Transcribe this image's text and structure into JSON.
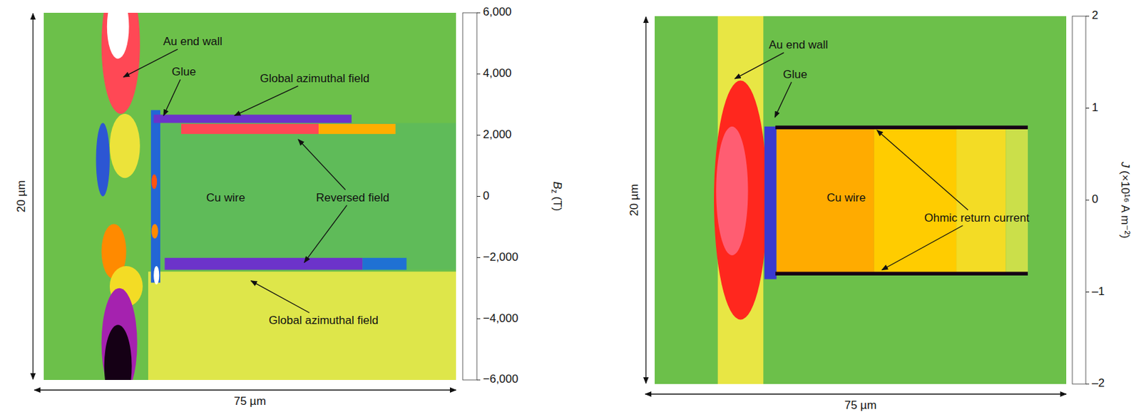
{
  "chart_data": [
    {
      "type": "heatmap",
      "xlabel": "75 µm",
      "ylabel": "20 µm",
      "xlim": [
        0,
        75
      ],
      "ylim": [
        20,
        0
      ],
      "tick_labels": false,
      "colorbar": {
        "label": {
          "symbol": "B",
          "subscript": "z",
          "unit": "(T)"
        },
        "range": [
          -6000,
          6000
        ],
        "ticks": [
          {
            "value": 6000,
            "label": "6,000"
          },
          {
            "value": 4000,
            "label": "4,000"
          },
          {
            "value": 2000,
            "label": "2,000"
          },
          0,
          {
            "value": -2000,
            "label": "−2,000"
          },
          {
            "value": -4000,
            "label": "−4,000"
          },
          {
            "value": -6000,
            "label": "−6,000"
          }
        ]
      },
      "regions": [
        {
          "shape": "rect",
          "x0": 0,
          "x1": 75,
          "y0": 0,
          "y1": 20,
          "value": 0
        },
        {
          "shape": "rect",
          "x0": 19,
          "x1": 75,
          "y0": 14.1,
          "y1": 20,
          "value": -900
        },
        {
          "shape": "ellipse",
          "x0": 10.5,
          "x1": 17.5,
          "y0": -2,
          "y1": 5.5,
          "value": -4500
        },
        {
          "shape": "ellipse",
          "x0": 11.5,
          "x1": 15.5,
          "y0": -1,
          "y1": 2.5,
          "value": -6000
        },
        {
          "shape": "ellipse",
          "x0": 9.5,
          "x1": 12,
          "y0": 6,
          "y1": 10,
          "value": 2500
        },
        {
          "shape": "ellipse",
          "x0": 12,
          "x1": 17.5,
          "y0": 5.5,
          "y1": 9,
          "value": -1200
        },
        {
          "shape": "ellipse",
          "x0": 10.5,
          "x1": 15,
          "y0": 11.5,
          "y1": 14.5,
          "value": -3000
        },
        {
          "shape": "ellipse",
          "x0": 12,
          "x1": 18,
          "y0": 13.8,
          "y1": 16,
          "value": -1500
        },
        {
          "shape": "ellipse",
          "x0": 10.5,
          "x1": 17,
          "y0": 15,
          "y1": 21,
          "value": 4500
        },
        {
          "shape": "ellipse",
          "x0": 11,
          "x1": 16,
          "y0": 17,
          "y1": 21.5,
          "value": 6000
        },
        {
          "shape": "rect",
          "x0": 19.5,
          "x1": 21.2,
          "y0": 5.3,
          "y1": 14.7,
          "value": 2200
        },
        {
          "shape": "ellipse",
          "x0": 19.6,
          "x1": 20.6,
          "y0": 8.8,
          "y1": 9.6,
          "value": -3500
        },
        {
          "shape": "ellipse",
          "x0": 19.6,
          "x1": 20.8,
          "y0": 11.5,
          "y1": 12.3,
          "value": -3000
        },
        {
          "shape": "ellipse",
          "x0": 20,
          "x1": 21,
          "y0": 13.8,
          "y1": 14.8,
          "value": -6000
        },
        {
          "shape": "rect",
          "x0": 21.2,
          "x1": 75,
          "y0": 6,
          "y1": 14,
          "value": 200
        },
        {
          "shape": "rect",
          "x0": 20,
          "x1": 56,
          "y0": 5.55,
          "y1": 6,
          "value": 3500
        },
        {
          "shape": "rect",
          "x0": 25,
          "x1": 50,
          "y0": 6.05,
          "y1": 6.6,
          "value": -4500
        },
        {
          "shape": "rect",
          "x0": 50,
          "x1": 64,
          "y0": 6.05,
          "y1": 6.6,
          "value": -2500
        },
        {
          "shape": "rect",
          "x0": 22,
          "x1": 58,
          "y0": 13.35,
          "y1": 14,
          "value": 3500
        },
        {
          "shape": "rect",
          "x0": 58,
          "x1": 66,
          "y0": 13.35,
          "y1": 14,
          "value": 2000
        }
      ],
      "annotations": [
        {
          "text": "Au end wall",
          "x": 27.1,
          "y": 1.6,
          "arrows": [
            [
              14.5,
              3.5
            ]
          ]
        },
        {
          "text": "Glue",
          "x": 25.5,
          "y": 3.25,
          "arrows": [
            [
              21.8,
              5.6
            ]
          ]
        },
        {
          "text": "Global azimuthal field",
          "x": 49.3,
          "y": 3.6,
          "arrows": [
            [
              34.7,
              5.6
            ]
          ]
        },
        {
          "text": "Reversed field",
          "x": 56.2,
          "y": 10.1,
          "arrows": [
            [
              46.3,
              6.9
            ],
            [
              47.4,
              13.6
            ]
          ]
        },
        {
          "text": "Cu wire",
          "x": 33.1,
          "y": 10.1
        },
        {
          "text": "Global azimuthal field",
          "x": 50.9,
          "y": 16.8,
          "arrows": [
            [
              37.7,
              14.6
            ]
          ]
        }
      ]
    },
    {
      "type": "heatmap",
      "xlabel": "75 µm",
      "ylabel": "20 µm",
      "xlim": [
        0,
        75
      ],
      "ylim": [
        20,
        0
      ],
      "tick_labels": false,
      "colorbar": {
        "label": {
          "symbol": "J",
          "unit": "(×10¹⁶ A m⁻²)"
        },
        "range": [
          -2,
          2
        ],
        "ticks": [
          2,
          1,
          0,
          {
            "value": -1,
            "label": "–1"
          },
          {
            "value": -2,
            "label": "–2"
          }
        ]
      },
      "regions": [
        {
          "shape": "rect",
          "x0": 0,
          "x1": 75,
          "y0": 0,
          "y1": 20,
          "value": 0
        },
        {
          "shape": "rect",
          "x0": 11.5,
          "x1": 19.8,
          "y0": 0,
          "y1": 20,
          "value": -0.35
        },
        {
          "shape": "ellipse",
          "x0": 10.8,
          "x1": 20.5,
          "y0": 3.5,
          "y1": 16.5,
          "value": -1.3
        },
        {
          "shape": "ellipse",
          "x0": 11.2,
          "x1": 17,
          "y0": 6,
          "y1": 13,
          "value": -1.6
        },
        {
          "shape": "rect",
          "x0": 20,
          "x1": 22.2,
          "y0": 6,
          "y1": 14.3,
          "value": 1
        },
        {
          "shape": "rect",
          "x0": 22.2,
          "x1": 40,
          "y0": 6,
          "y1": 14,
          "value": -0.85
        },
        {
          "shape": "rect",
          "x0": 40,
          "x1": 55,
          "y0": 6,
          "y1": 14,
          "value": -0.7
        },
        {
          "shape": "rect",
          "x0": 55,
          "x1": 64,
          "y0": 6,
          "y1": 14,
          "value": -0.5
        },
        {
          "shape": "rect",
          "x0": 64,
          "x1": 68,
          "y0": 6,
          "y1": 14,
          "value": -0.25
        },
        {
          "shape": "rect",
          "x0": 22,
          "x1": 68,
          "y0": 5.95,
          "y1": 6.15,
          "value": 2
        },
        {
          "shape": "rect",
          "x0": 22,
          "x1": 68,
          "y0": 13.9,
          "y1": 14.1,
          "value": 2
        }
      ],
      "annotations": [
        {
          "text": "Au end wall",
          "x": 26.2,
          "y": 1.6,
          "arrows": [
            [
              14.6,
              3.4
            ]
          ]
        },
        {
          "text": "Glue",
          "x": 25.6,
          "y": 3.2,
          "arrows": [
            [
              21.9,
              5.5
            ]
          ]
        },
        {
          "text": "Cu wire",
          "x": 34.9,
          "y": 9.9
        },
        {
          "text": "Ohmic return current",
          "x": 58.7,
          "y": 11,
          "arrows": [
            [
              40.5,
              6.2
            ],
            [
              41.4,
              13.8
            ]
          ]
        }
      ]
    }
  ]
}
